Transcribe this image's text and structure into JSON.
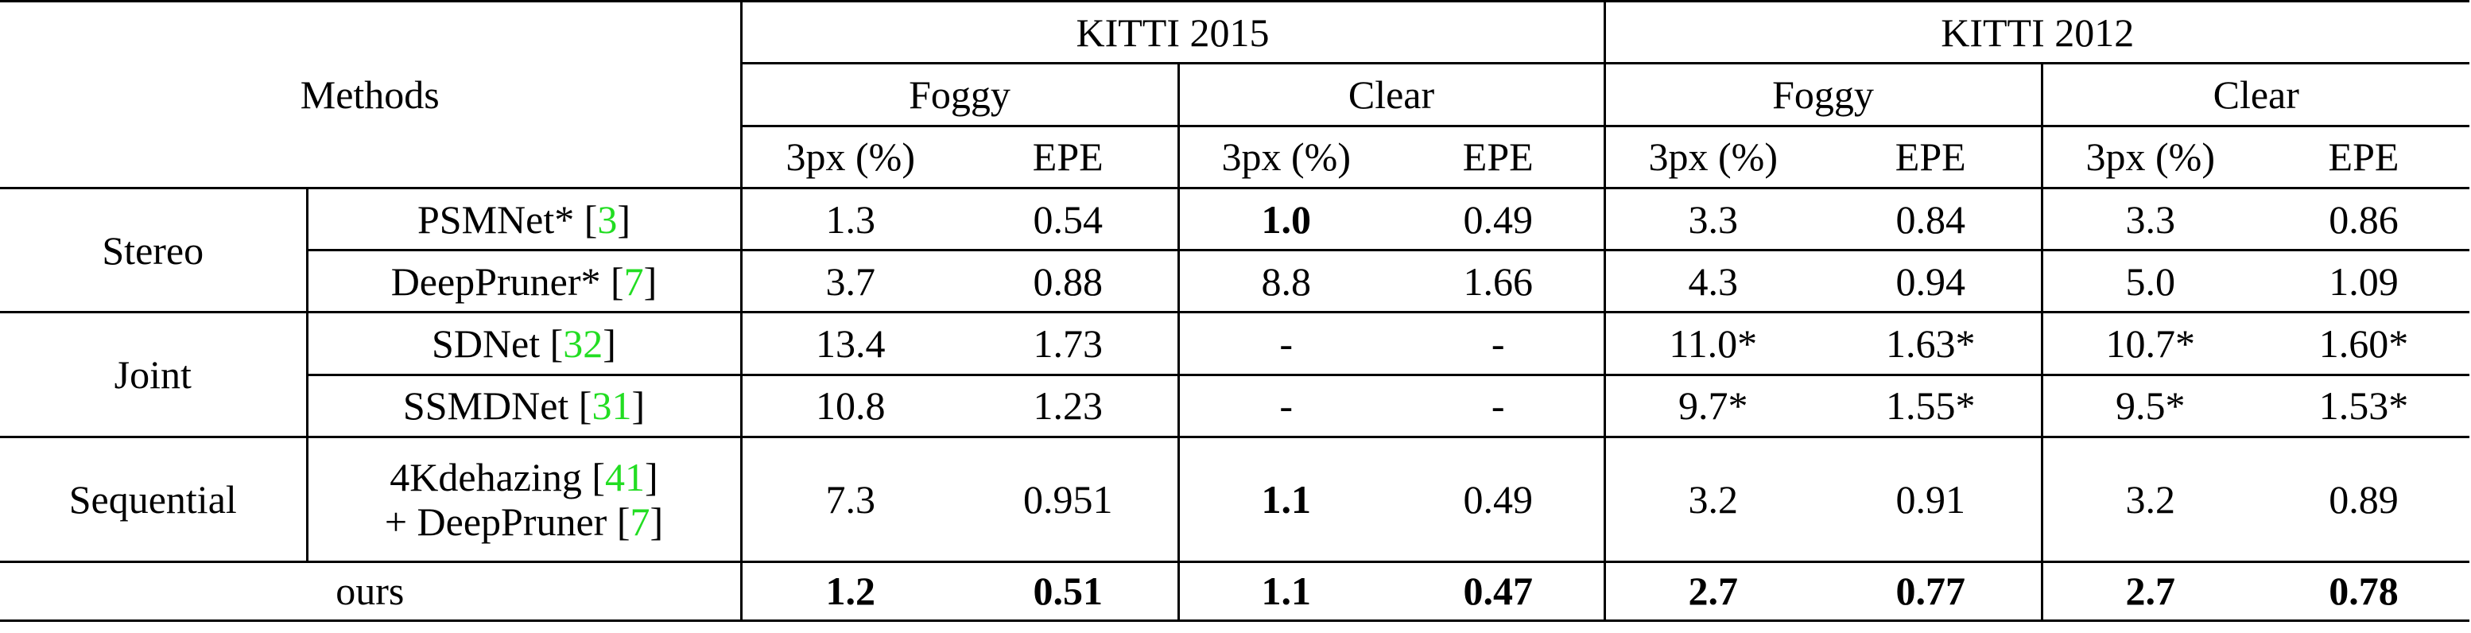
{
  "header": {
    "methods": "Methods",
    "datasets": [
      "KITTI 2015",
      "KITTI 2012"
    ],
    "conditions": [
      "Foggy",
      "Clear",
      "Foggy",
      "Clear"
    ],
    "metrics": [
      "3px (%)",
      "EPE",
      "3px (%)",
      "EPE",
      "3px (%)",
      "EPE",
      "3px (%)",
      "EPE"
    ]
  },
  "groups": [
    "Stereo",
    "Joint",
    "Sequential"
  ],
  "rows": [
    {
      "group": 0,
      "method": "PSMNet*",
      "ref": "3",
      "cells": [
        {
          "v": "1.3",
          "bold": false
        },
        {
          "v": "0.54",
          "bold": false
        },
        {
          "v": "1.0",
          "bold": true
        },
        {
          "v": "0.49",
          "bold": false
        },
        {
          "v": "3.3",
          "bold": false
        },
        {
          "v": "0.84",
          "bold": false
        },
        {
          "v": "3.3",
          "bold": false
        },
        {
          "v": "0.86",
          "bold": false
        }
      ]
    },
    {
      "group": 0,
      "method": "DeepPruner*",
      "ref": "7",
      "cells": [
        {
          "v": "3.7",
          "bold": false
        },
        {
          "v": "0.88",
          "bold": false
        },
        {
          "v": "8.8",
          "bold": false
        },
        {
          "v": "1.66",
          "bold": false
        },
        {
          "v": "4.3",
          "bold": false
        },
        {
          "v": "0.94",
          "bold": false
        },
        {
          "v": "5.0",
          "bold": false
        },
        {
          "v": "1.09",
          "bold": false
        }
      ]
    },
    {
      "group": 1,
      "method": "SDNet",
      "ref": "32",
      "cells": [
        {
          "v": "13.4",
          "bold": false
        },
        {
          "v": "1.73",
          "bold": false
        },
        {
          "v": "-",
          "bold": false
        },
        {
          "v": "-",
          "bold": false
        },
        {
          "v": "11.0*",
          "bold": false
        },
        {
          "v": "1.63*",
          "bold": false
        },
        {
          "v": "10.7*",
          "bold": false
        },
        {
          "v": "1.60*",
          "bold": false
        }
      ]
    },
    {
      "group": 1,
      "method": "SSMDNet",
      "ref": "31",
      "cells": [
        {
          "v": "10.8",
          "bold": false
        },
        {
          "v": "1.23",
          "bold": false
        },
        {
          "v": "-",
          "bold": false
        },
        {
          "v": "-",
          "bold": false
        },
        {
          "v": "9.7*",
          "bold": false
        },
        {
          "v": "1.55*",
          "bold": false
        },
        {
          "v": "9.5*",
          "bold": false
        },
        {
          "v": "1.53*",
          "bold": false
        }
      ]
    },
    {
      "group": 2,
      "method": "4Kdehazing",
      "ref": "41",
      "method2": "+ DeepPruner",
      "ref2": "7",
      "cells": [
        {
          "v": "7.3",
          "bold": false
        },
        {
          "v": "0.951",
          "bold": false
        },
        {
          "v": "1.1",
          "bold": true
        },
        {
          "v": "0.49",
          "bold": false
        },
        {
          "v": "3.2",
          "bold": false
        },
        {
          "v": "0.91",
          "bold": false
        },
        {
          "v": "3.2",
          "bold": false
        },
        {
          "v": "0.89",
          "bold": false
        }
      ]
    }
  ],
  "ours": {
    "label": "ours",
    "cells": [
      {
        "v": "1.2",
        "bold": true
      },
      {
        "v": "0.51",
        "bold": true
      },
      {
        "v": "1.1",
        "bold": true
      },
      {
        "v": "0.47",
        "bold": true
      },
      {
        "v": "2.7",
        "bold": true
      },
      {
        "v": "0.77",
        "bold": true
      },
      {
        "v": "2.7",
        "bold": true
      },
      {
        "v": "0.78",
        "bold": true
      }
    ]
  }
}
